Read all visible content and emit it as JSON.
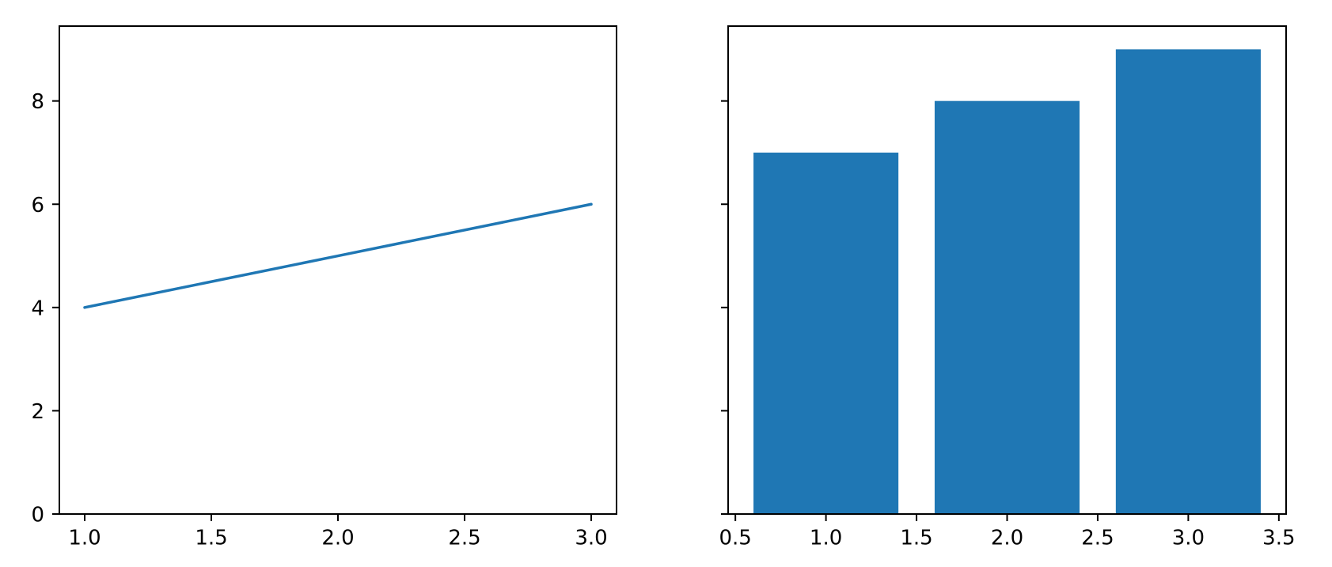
{
  "figure": {
    "background_color": "#ffffff",
    "spine_color": "#000000",
    "accent_color": "#1f77b4"
  },
  "chart_data": [
    {
      "type": "line",
      "title": "",
      "xlabel": "",
      "ylabel": "",
      "x": [
        1,
        2,
        3
      ],
      "y": [
        4,
        5,
        6
      ],
      "line_color": "#1f77b4",
      "xlim": [
        0.9,
        3.1
      ],
      "ylim": [
        0,
        9.45
      ],
      "xticks": {
        "values": [
          1.0,
          1.5,
          2.0,
          2.5,
          3.0
        ],
        "labels": [
          "1.0",
          "1.5",
          "2.0",
          "2.5",
          "3.0"
        ]
      },
      "yticks": {
        "values": [
          0,
          2,
          4,
          6,
          8
        ],
        "labels": [
          "0",
          "2",
          "4",
          "6",
          "8"
        ]
      },
      "grid": false,
      "legend": null
    },
    {
      "type": "bar",
      "title": "",
      "xlabel": "",
      "ylabel": "",
      "categories": [
        1,
        2,
        3
      ],
      "values": [
        7,
        8,
        9
      ],
      "bar_width": 0.8,
      "bar_color": "#1f77b4",
      "xlim": [
        0.46,
        3.54
      ],
      "ylim": [
        0,
        9.45
      ],
      "xticks": {
        "values": [
          0.5,
          1.0,
          1.5,
          2.0,
          2.5,
          3.0,
          3.5
        ],
        "labels": [
          "0.5",
          "1.0",
          "1.5",
          "2.0",
          "2.5",
          "3.0",
          "3.5"
        ]
      },
      "yticks": {
        "values": [
          0,
          2,
          4,
          6,
          8
        ],
        "labels": []
      },
      "grid": false,
      "legend": null
    }
  ]
}
